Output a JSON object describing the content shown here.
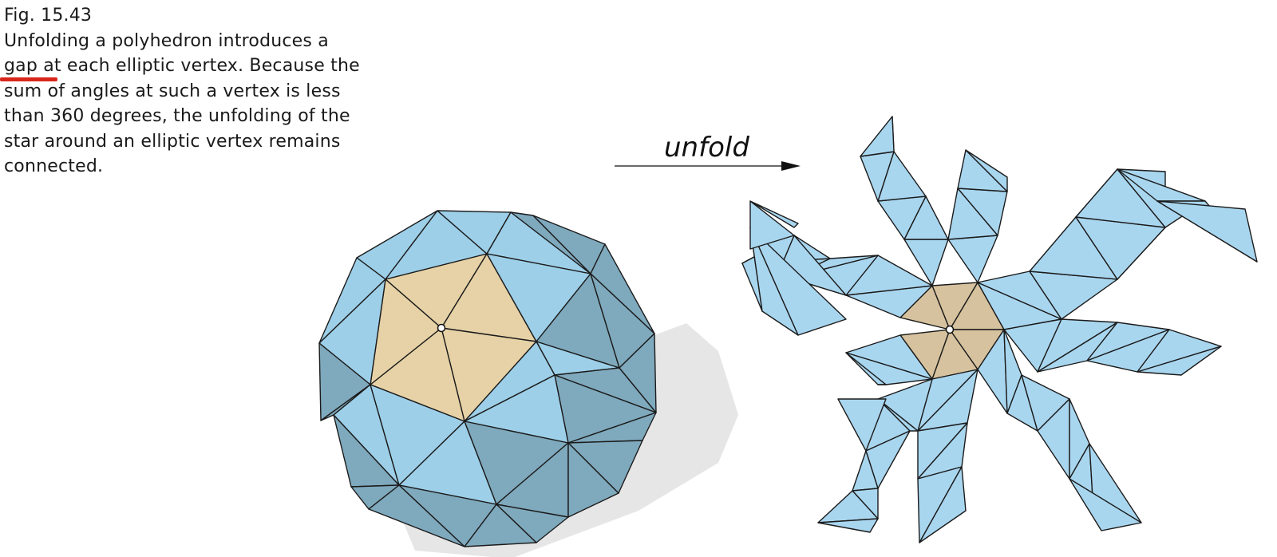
{
  "caption": {
    "figure_number": "Fig. 15.43",
    "lines": [
      "Unfolding a polyhedron introduces a",
      "gap at each elliptic vertex. Because the",
      "sum of angles at such a vertex is less",
      "than 360 degrees, the unfolding of the",
      "star around an elliptic vertex remains",
      "connected."
    ]
  },
  "diagram": {
    "arrow_label": "unfold"
  },
  "colors": {
    "face_blue": "#9dcfe8",
    "face_blue_dark": "#7fa9bd",
    "face_tan": "#e6d2a6",
    "net_blue": "#a9d6ef",
    "net_tan": "#d6c29e",
    "edge": "#1b1b1b",
    "shadow": "#e4e4e4",
    "underline": "#d9261c"
  }
}
